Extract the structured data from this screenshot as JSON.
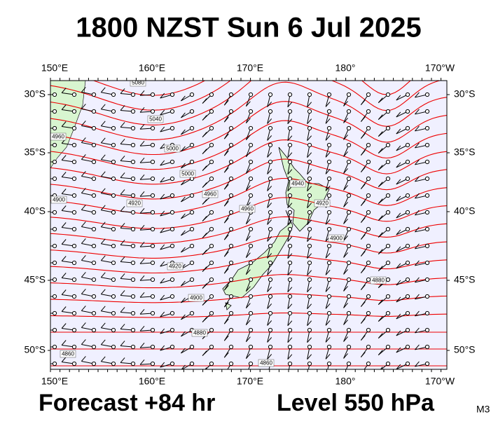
{
  "header": {
    "title": "1800 NZST Sun 6 Jul 2025"
  },
  "map": {
    "lon_labels": [
      "150°E",
      "160°E",
      "170°E",
      "180°",
      "170°W"
    ],
    "lat_labels": [
      "30°S",
      "35°S",
      "40°S",
      "45°S",
      "50°S"
    ],
    "contour_labels": [
      "5080",
      "5040",
      "5000",
      "5000",
      "4960",
      "4960",
      "4920",
      "4960",
      "4900",
      "4920",
      "4900",
      "4880",
      "4860",
      "4860",
      "4940",
      "4920",
      "4900",
      "4880"
    ]
  },
  "footer": {
    "forecast": "Forecast +84 hr",
    "level": "Level 550 hPa",
    "model": "M3"
  }
}
